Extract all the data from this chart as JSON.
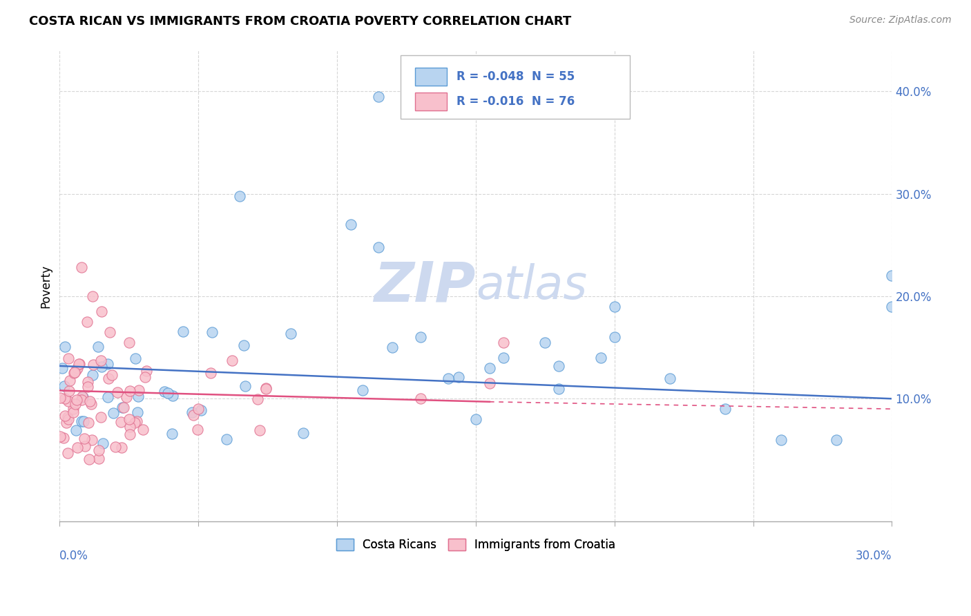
{
  "title": "COSTA RICAN VS IMMIGRANTS FROM CROATIA POVERTY CORRELATION CHART",
  "source": "Source: ZipAtlas.com",
  "ylabel": "Poverty",
  "xmin": 0.0,
  "xmax": 0.3,
  "ymin": -0.02,
  "ymax": 0.44,
  "yticks": [
    0.1,
    0.2,
    0.3,
    0.4
  ],
  "ytick_labels": [
    "10.0%",
    "20.0%",
    "30.0%",
    "40.0%"
  ],
  "xticks": [
    0.0,
    0.05,
    0.1,
    0.15,
    0.2,
    0.25,
    0.3
  ],
  "blue_label": "Costa Ricans",
  "blue_R": -0.048,
  "blue_N": 55,
  "pink_label": "Immigrants from Croatia",
  "pink_R": -0.016,
  "pink_N": 76,
  "blue_scatter_color": "#b8d4f0",
  "blue_edge_color": "#5b9bd5",
  "pink_scatter_color": "#f8c0cc",
  "pink_edge_color": "#e07090",
  "blue_trend_color": "#4472c4",
  "pink_trend_color": "#e05080",
  "grid_color": "#cccccc",
  "axis_label_color": "#4472c4",
  "watermark_color": "#cdd9ef",
  "background_color": "#ffffff",
  "blue_trend_x0": 0.0,
  "blue_trend_x1": 0.3,
  "blue_trend_y0": 0.132,
  "blue_trend_y1": 0.1,
  "pink_trend_x0": 0.0,
  "pink_trend_x1": 0.155,
  "pink_trend_x1_dash": 0.3,
  "pink_trend_y0": 0.108,
  "pink_trend_y1": 0.097,
  "pink_trend_y1_dash": 0.09
}
